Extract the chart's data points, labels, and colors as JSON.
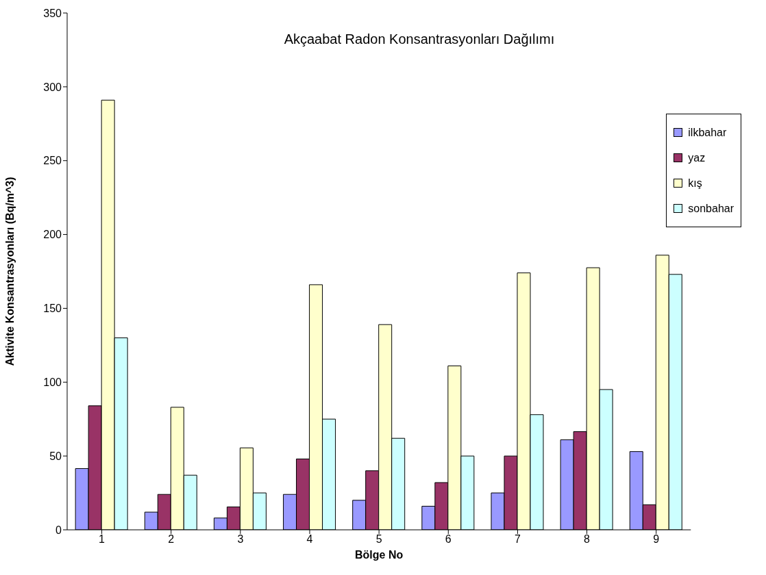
{
  "chart_data": {
    "type": "bar",
    "title": "Akçaabat Radon Konsantrasyonları Dağılımı",
    "xlabel": "Bölge No",
    "ylabel": "Aktivite Konsantrasyonları (Bq/m^3)",
    "categories": [
      "1",
      "2",
      "3",
      "4",
      "5",
      "6",
      "7",
      "8",
      "9"
    ],
    "series": [
      {
        "name": "ilkbahar",
        "color": "#9999ff",
        "values": [
          41.5,
          12,
          8,
          24,
          20,
          16,
          25,
          61,
          53
        ]
      },
      {
        "name": "yaz",
        "color": "#993366",
        "values": [
          84,
          24,
          15.5,
          48,
          40,
          32,
          50,
          66.5,
          17
        ]
      },
      {
        "name": "kış",
        "color": "#ffffcc",
        "values": [
          291,
          83,
          55.5,
          166,
          139,
          111,
          174,
          177.5,
          186
        ]
      },
      {
        "name": "sonbahar",
        "color": "#ccffff",
        "values": [
          130,
          37,
          25,
          75,
          62,
          50,
          78,
          95,
          173
        ]
      }
    ],
    "ylim": [
      0,
      350
    ],
    "yticks": [
      0,
      50,
      100,
      150,
      200,
      250,
      300,
      350
    ],
    "grid": false,
    "legend": "right"
  }
}
